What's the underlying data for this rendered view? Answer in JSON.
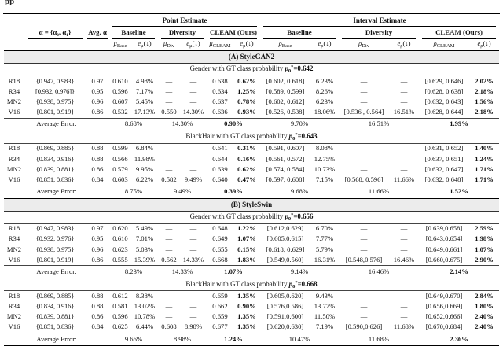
{
  "page": {
    "top_fragment": "pp"
  },
  "table": {
    "group_headers": [
      "Point Estimate",
      "Interval Estimate"
    ],
    "alpha_header": "α = {α₀, α₁}",
    "avg_alpha_header": "Avg. α",
    "method_headers": [
      "Baseline",
      "Diversity",
      "CLEAM (Ours)",
      "Baseline",
      "Diversity",
      "CLEAM (Ours)"
    ],
    "stat_headers": [
      {
        "sym": "μ",
        "sub": "Base",
        "suffix": ""
      },
      {
        "sym": "e",
        "sub": "μ",
        "suffix": "(↓)"
      },
      {
        "sym": "μ",
        "sub": "Div",
        "suffix": ""
      },
      {
        "sym": "e",
        "sub": "μ",
        "suffix": "(↓)"
      },
      {
        "sym": "μ",
        "sub": "CLEAM",
        "suffix": ""
      },
      {
        "sym": "e",
        "sub": "μ",
        "suffix": "(↓)"
      },
      {
        "sym": "ρ",
        "sub": "Base",
        "suffix": ""
      },
      {
        "sym": "e",
        "sub": "ρ",
        "suffix": "(↓)"
      },
      {
        "sym": "ρ",
        "sub": "Div",
        "suffix": ""
      },
      {
        "sym": "e",
        "sub": "ρ",
        "suffix": "(↓)"
      },
      {
        "sym": "ρ",
        "sub": "CLEAM",
        "suffix": ""
      },
      {
        "sym": "e",
        "sub": "ρ",
        "suffix": "(↓)"
      }
    ],
    "bold_value_columns": [
      5,
      11
    ],
    "bold_average_columns": [
      2,
      5
    ],
    "sections": [
      {
        "label": "(A) StyleGAN2",
        "subsections": [
          {
            "title_prefix": "Gender with GT class probability",
            "p_var": "p",
            "p_sub": "0",
            "p_sup": "*",
            "p_value": "0.642",
            "rows": [
              {
                "model": "R18",
                "alpha": "{0.947, 0.983}",
                "avg_alpha": "0.97",
                "values": [
                  "0.610",
                  "4.98%",
                  "—",
                  "—",
                  "0.638",
                  "0.62%",
                  "[0.602, 0.618]",
                  "6.23%",
                  "—",
                  "—",
                  "[0.629, 0.646]",
                  "2.02%"
                ]
              },
              {
                "model": "R34",
                "alpha": "[0.932, 0.976]}",
                "avg_alpha": "0.95",
                "values": [
                  "0.596",
                  "7.17%",
                  "—",
                  "—",
                  "0.634",
                  "1.25%",
                  "[0.589, 0.599]",
                  "8.26%",
                  "—",
                  "—",
                  "[0.628, 0.638]",
                  "2.18%"
                ]
              },
              {
                "model": "MN2",
                "alpha": "{0.938, 0.975}",
                "avg_alpha": "0.96",
                "values": [
                  "0.607",
                  "5.45%",
                  "—",
                  "—",
                  "0.637",
                  "0.78%",
                  "[0.602, 0.612]",
                  "6.23%",
                  "—",
                  "—",
                  "[0.632, 0.643]",
                  "1.56%"
                ]
              },
              {
                "model": "V16",
                "alpha": "{0.801, 0.919}",
                "avg_alpha": "0.86",
                "values": [
                  "0.532",
                  "17.13%",
                  "0.550",
                  "14.30%",
                  "0.636",
                  "0.93%",
                  "[0.526, 0.538]",
                  "18.06%",
                  "[0.536 , 0.564]",
                  "16.51%",
                  "[0.628, 0.644]",
                  "2.18%"
                ]
              }
            ],
            "average_label": "Average Error:",
            "averages": [
              "8.68%",
              "14.30%",
              "0.90%",
              "9.70%",
              "16.51%",
              "1.99%"
            ]
          },
          {
            "title_prefix": "BlackHair with GT class probability",
            "p_var": "p",
            "p_sub": "0",
            "p_sup": "*",
            "p_value": "0.643",
            "rows": [
              {
                "model": "R18",
                "alpha": "{0.869, 0.885}",
                "avg_alpha": "0.88",
                "values": [
                  "0.599",
                  "6.84%",
                  "—",
                  "—",
                  "0.641",
                  "0.31%",
                  "[0.591, 0.607]",
                  "8.08%",
                  "—",
                  "—",
                  "[0.631, 0.652]",
                  "1.40%"
                ]
              },
              {
                "model": "R34",
                "alpha": "{0.834, 0.916}",
                "avg_alpha": "0.88",
                "values": [
                  "0.566",
                  "11.98%",
                  "—",
                  "—",
                  "0.644",
                  "0.16%",
                  "[0.561, 0.572]",
                  "12.75%",
                  "—",
                  "—",
                  "[0.637, 0.651]",
                  "1.24%"
                ]
              },
              {
                "model": "MN2",
                "alpha": "{0.839, 0.881}",
                "avg_alpha": "0.86",
                "values": [
                  "0.579",
                  "9.95%",
                  "—",
                  "—",
                  "0.639",
                  "0.62%",
                  "[0.574, 0.584]",
                  "10.73%",
                  "—",
                  "—",
                  "[0.632, 0.647]",
                  "1.71%"
                ]
              },
              {
                "model": "V16",
                "alpha": "{0.851, 0.836}",
                "avg_alpha": "0.84",
                "values": [
                  "0.603",
                  "6.22%",
                  "0.582",
                  "9.49%",
                  "0.640",
                  "0.47%",
                  "[0.597, 0.608]",
                  "7.15%",
                  "[0.568, 0.596]",
                  "11.66%",
                  "[0.632, 0.648]",
                  "1.71%"
                ]
              }
            ],
            "average_label": "Average Error:",
            "averages": [
              "8.75%",
              "9.49%",
              "0.39%",
              "9.68%",
              "11.66%",
              "1.52%"
            ]
          }
        ]
      },
      {
        "label": "(B) StyleSwin",
        "subsections": [
          {
            "title_prefix": "Gender with GT class probability",
            "p_var": "p",
            "p_sub": "0",
            "p_sup": "*",
            "p_value": "0.656",
            "rows": [
              {
                "model": "R18",
                "alpha": "{0.947, 0.983}",
                "avg_alpha": "0.97",
                "values": [
                  "0.620",
                  "5.49%",
                  "—",
                  "—",
                  "0.648",
                  "1.22%",
                  "[0.612,0.629]",
                  "6.70%",
                  "—",
                  "—",
                  "[0.639,0.658]",
                  "2.59%"
                ]
              },
              {
                "model": "R34",
                "alpha": "{0.932, 0.976}",
                "avg_alpha": "0.95",
                "values": [
                  "0.610",
                  "7.01%",
                  "—",
                  "—",
                  "0.649",
                  "1.07%",
                  "[0.605,0.615]",
                  "7.77%",
                  "—",
                  "—",
                  "[0.643,0.654]",
                  "1.98%"
                ]
              },
              {
                "model": "MN2",
                "alpha": "{0.938, 0.975}",
                "avg_alpha": "0.96",
                "values": [
                  "0.623",
                  "5.03%",
                  "—",
                  "—",
                  "0.655",
                  "0.15%",
                  "[0.618, 0.629]",
                  "5.79%",
                  "—",
                  "—",
                  "[0.649,0.661]",
                  "1.07%"
                ]
              },
              {
                "model": "V16",
                "alpha": "{0.801, 0.919}",
                "avg_alpha": "0.86",
                "values": [
                  "0.555",
                  "15.39%",
                  "0.562",
                  "14.33%",
                  "0.668",
                  "1.83%",
                  "[0.549,0.560]",
                  "16.31%",
                  "[0.548,0.576]",
                  "16.46%",
                  "[0.660,0.675]",
                  "2.90%"
                ]
              }
            ],
            "average_label": "Average Error:",
            "averages": [
              "8.23%",
              "14.33%",
              "1.07%",
              "9.14%",
              "16.46%",
              "2.14%"
            ]
          },
          {
            "title_prefix": "BlackHair with GT class probability",
            "p_var": "p",
            "p_sub": "0",
            "p_sup": "*",
            "p_value": "0.668",
            "rows": [
              {
                "model": "R18",
                "alpha": "{0.869, 0.885}",
                "avg_alpha": "0.88",
                "values": [
                  "0.612",
                  "8.38%",
                  "—",
                  "—",
                  "0.659",
                  "1.35%",
                  "[0.605,0.620]",
                  "9.43%",
                  "—",
                  "—",
                  "[0.649,0.670]",
                  "2.84%"
                ]
              },
              {
                "model": "R34",
                "alpha": "{0.834, 0.916}",
                "avg_alpha": "0.88",
                "values": [
                  "0.581",
                  "13.02%",
                  "—",
                  "—",
                  "0.662",
                  "0.90%",
                  "[0.576,0.586]",
                  "13.77%",
                  "—",
                  "—",
                  "[0.656,0.669]",
                  "1.80%"
                ]
              },
              {
                "model": "MN2",
                "alpha": "{0.839, 0.881}",
                "avg_alpha": "0.86",
                "values": [
                  "0.596",
                  "10.78%",
                  "—",
                  "—",
                  "0.659",
                  "1.35%",
                  "[0.591,0.600]",
                  "11.50%",
                  "—",
                  "—",
                  "[0.652,0.666]",
                  "2.40%"
                ]
              },
              {
                "model": "V16",
                "alpha": "{0.851, 0.836}",
                "avg_alpha": "0.84",
                "values": [
                  "0.625",
                  "6.44%",
                  "0.608",
                  "8.98%",
                  "0.677",
                  "1.35%",
                  "[0.620,0.630]",
                  "7.19%",
                  "[0.590,0.626]",
                  "11.68%",
                  "[0.670,0.684]",
                  "2.40%"
                ]
              }
            ],
            "average_label": "Average Error:",
            "averages": [
              "9.66%",
              "8.98%",
              "1.24%",
              "10.47%",
              "11.68%",
              "2.36%"
            ]
          }
        ]
      }
    ]
  }
}
